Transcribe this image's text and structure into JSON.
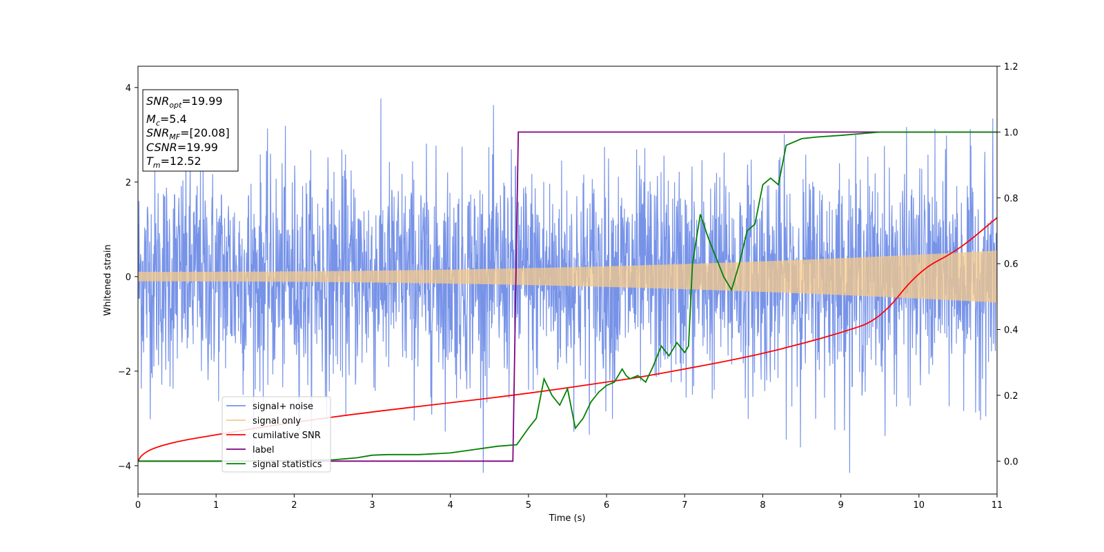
{
  "chart_data": {
    "type": "line",
    "xlabel": "Time (s)",
    "ylabel": "Whitened strain",
    "xlim": [
      0,
      11
    ],
    "ylim_left": [
      -4.6,
      4.45
    ],
    "ylim_right": [
      -0.1,
      1.2
    ],
    "x_ticks": [
      "0",
      "1",
      "2",
      "3",
      "4",
      "5",
      "6",
      "7",
      "8",
      "9",
      "10",
      "11"
    ],
    "y_left_ticks": [
      "-4",
      "-2",
      "0",
      "2",
      "4"
    ],
    "y_right_ticks": [
      "0.0",
      "0.2",
      "0.4",
      "0.6",
      "0.8",
      "1.0",
      "1.2"
    ],
    "info_box": {
      "snr_opt": {
        "main": "SNR",
        "sub": "opt",
        "value": "=19.99"
      },
      "mc": {
        "main": "M",
        "sub": "c",
        "value": "=5.4"
      },
      "snr_mf": {
        "main": "SNR",
        "sub": "MF",
        "value": "=[20.08]"
      },
      "csnr": {
        "main": "CSNR",
        "value": "=19.99"
      },
      "tm": {
        "main": "T",
        "sub": "m",
        "value": "=12.52"
      }
    },
    "legend": {
      "placement": "lower-left",
      "entries": [
        "signal+ noise",
        "signal only",
        "cumilative SNR",
        "label",
        "signal statistics"
      ]
    },
    "series": [
      {
        "name": "signal+ noise",
        "axis": "left",
        "color": "#7793e8",
        "kind": "noise",
        "std": 1.0,
        "peak": 4.05,
        "trough": -4.15
      },
      {
        "name": "signal only",
        "axis": "left",
        "color": "#f5c98a",
        "kind": "chirp",
        "amplitude_start": 0.1,
        "amplitude_end": 0.55
      },
      {
        "name": "cumilative SNR",
        "axis": "right",
        "color": "#ff0000",
        "x": [
          0,
          0.05,
          0.2,
          0.5,
          1,
          1.5,
          2,
          3,
          4,
          5,
          6,
          6.5,
          7,
          7.5,
          8,
          8.5,
          9,
          9.5,
          10,
          10.5,
          11
        ],
        "y": [
          0.0,
          0.02,
          0.04,
          0.06,
          0.08,
          0.1,
          0.118,
          0.15,
          0.177,
          0.206,
          0.24,
          0.258,
          0.28,
          0.302,
          0.327,
          0.357,
          0.39,
          0.43,
          0.58,
          0.64,
          0.74
        ]
      },
      {
        "name": "label",
        "axis": "right",
        "color": "#800080",
        "x": [
          0,
          4.8,
          4.87,
          11
        ],
        "y": [
          0,
          0,
          1,
          1
        ]
      },
      {
        "name": "signal statistics",
        "axis": "right",
        "color": "#008000",
        "x": [
          0,
          1,
          2,
          2.5,
          2.8,
          3.0,
          3.2,
          3.6,
          4.0,
          4.3,
          4.6,
          4.85,
          5.0,
          5.1,
          5.2,
          5.3,
          5.4,
          5.5,
          5.6,
          5.7,
          5.8,
          5.9,
          6.0,
          6.1,
          6.2,
          6.25,
          6.3,
          6.4,
          6.5,
          6.6,
          6.7,
          6.8,
          6.9,
          7.0,
          7.05,
          7.1,
          7.2,
          7.3,
          7.4,
          7.5,
          7.6,
          7.7,
          7.8,
          7.9,
          8.0,
          8.1,
          8.2,
          8.3,
          8.5,
          8.7,
          9.0,
          9.5,
          10,
          10.5,
          11
        ],
        "y": [
          0.0,
          0.0,
          0.002,
          0.004,
          0.01,
          0.018,
          0.02,
          0.02,
          0.025,
          0.035,
          0.045,
          0.05,
          0.1,
          0.13,
          0.25,
          0.2,
          0.17,
          0.22,
          0.1,
          0.13,
          0.18,
          0.21,
          0.23,
          0.24,
          0.28,
          0.26,
          0.25,
          0.26,
          0.24,
          0.29,
          0.35,
          0.32,
          0.36,
          0.33,
          0.35,
          0.6,
          0.75,
          0.68,
          0.62,
          0.56,
          0.52,
          0.6,
          0.7,
          0.72,
          0.84,
          0.86,
          0.84,
          0.96,
          0.98,
          0.985,
          0.99,
          1.0,
          1.0,
          1.0,
          1.0
        ]
      }
    ]
  }
}
